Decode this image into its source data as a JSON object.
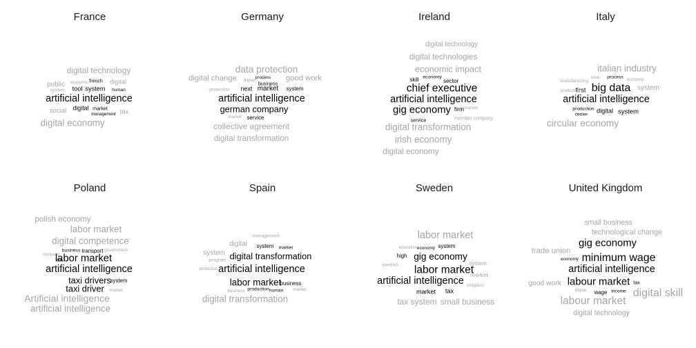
{
  "chart_data": {
    "type": "wordcloud",
    "panels": [
      {
        "title": "France",
        "words": [
          {
            "text": "digital technology",
            "weight": 0.5,
            "tone": "light"
          },
          {
            "text": "public",
            "weight": 0.35,
            "tone": "light"
          },
          {
            "text": "french",
            "weight": 0.15,
            "tone": "dark"
          },
          {
            "text": "digital",
            "weight": 0.3,
            "tone": "light"
          },
          {
            "text": "economic",
            "weight": 0.08,
            "tone": "light"
          },
          {
            "text": "system",
            "weight": 0.12,
            "tone": "light"
          },
          {
            "text": "tool",
            "weight": 0.3,
            "tone": "dark"
          },
          {
            "text": "system",
            "weight": 0.3,
            "tone": "dark"
          },
          {
            "text": "human",
            "weight": 0.1,
            "tone": "dark"
          },
          {
            "text": "artificial intelligence",
            "weight": 0.68,
            "tone": "dark"
          },
          {
            "text": "social",
            "weight": 0.33,
            "tone": "light"
          },
          {
            "text": "digital",
            "weight": 0.28,
            "tone": "dark"
          },
          {
            "text": "market",
            "weight": 0.15,
            "tone": "dark"
          },
          {
            "text": "management",
            "weight": 0.08,
            "tone": "dark"
          },
          {
            "text": "tax",
            "weight": 0.32,
            "tone": "light"
          },
          {
            "text": "digital economy",
            "weight": 0.6,
            "tone": "light"
          }
        ]
      },
      {
        "title": "Germany",
        "words": [
          {
            "text": "data protection",
            "weight": 0.62,
            "tone": "light"
          },
          {
            "text": "digital change",
            "weight": 0.45,
            "tone": "light"
          },
          {
            "text": "digital",
            "weight": 0.08,
            "tone": "light"
          },
          {
            "text": "process",
            "weight": 0.1,
            "tone": "dark"
          },
          {
            "text": "good work",
            "weight": 0.45,
            "tone": "light"
          },
          {
            "text": "business",
            "weight": 0.16,
            "tone": "dark"
          },
          {
            "text": "protection",
            "weight": 0.13,
            "tone": "light"
          },
          {
            "text": "next",
            "weight": 0.28,
            "tone": "dark"
          },
          {
            "text": "market",
            "weight": 0.36,
            "tone": "dark"
          },
          {
            "text": "system",
            "weight": 0.2,
            "tone": "dark"
          },
          {
            "text": "artificial intelligence",
            "weight": 0.68,
            "tone": "dark"
          },
          {
            "text": "german company",
            "weight": 0.56,
            "tone": "dark"
          },
          {
            "text": "market",
            "weight": 0.1,
            "tone": "light"
          },
          {
            "text": "service",
            "weight": 0.2,
            "tone": "dark"
          },
          {
            "text": "collective agreement",
            "weight": 0.5,
            "tone": "light"
          },
          {
            "text": "digital transformation",
            "weight": 0.48,
            "tone": "light"
          }
        ]
      },
      {
        "title": "Ireland",
        "words": [
          {
            "text": "digital technology",
            "weight": 0.35,
            "tone": "light"
          },
          {
            "text": "digital technologies",
            "weight": 0.47,
            "tone": "light"
          },
          {
            "text": "economic impact",
            "weight": 0.56,
            "tone": "light"
          },
          {
            "text": "skill",
            "weight": 0.2,
            "tone": "dark"
          },
          {
            "text": "economy",
            "weight": 0.13,
            "tone": "dark"
          },
          {
            "text": "sector",
            "weight": 0.22,
            "tone": "dark"
          },
          {
            "text": "chief executive",
            "weight": 0.75,
            "tone": "dark"
          },
          {
            "text": "artificial intelligence",
            "weight": 0.68,
            "tone": "dark"
          },
          {
            "text": "gig economy",
            "weight": 0.7,
            "tone": "dark"
          },
          {
            "text": "firm",
            "weight": 0.25,
            "tone": "dark"
          },
          {
            "text": "market",
            "weight": 0.1,
            "tone": "light"
          },
          {
            "text": "service",
            "weight": 0.16,
            "tone": "dark"
          },
          {
            "text": "member company",
            "weight": 0.14,
            "tone": "light"
          },
          {
            "text": "digital transformation",
            "weight": 0.6,
            "tone": "light"
          },
          {
            "text": "irish economy",
            "weight": 0.6,
            "tone": "light"
          },
          {
            "text": "digital economy",
            "weight": 0.48,
            "tone": "light"
          }
        ]
      },
      {
        "title": "Italy",
        "words": [
          {
            "text": "italian industry",
            "weight": 0.6,
            "tone": "light"
          },
          {
            "text": "total",
            "weight": 0.1,
            "tone": "light"
          },
          {
            "text": "process",
            "weight": 0.12,
            "tone": "dark"
          },
          {
            "text": "economy",
            "weight": 0.08,
            "tone": "light"
          },
          {
            "text": "manufacturing",
            "weight": 0.1,
            "tone": "light"
          },
          {
            "text": "system",
            "weight": 0.36,
            "tone": "light"
          },
          {
            "text": "first",
            "weight": 0.3,
            "tone": "dark"
          },
          {
            "text": "big data",
            "weight": 0.78,
            "tone": "dark"
          },
          {
            "text": "production",
            "weight": 0.07,
            "tone": "light"
          },
          {
            "text": "artificial intelligence",
            "weight": 0.68,
            "tone": "dark"
          },
          {
            "text": "production",
            "weight": 0.12,
            "tone": "dark"
          },
          {
            "text": "digital",
            "weight": 0.3,
            "tone": "dark"
          },
          {
            "text": "system",
            "weight": 0.32,
            "tone": "dark"
          },
          {
            "text": "center",
            "weight": 0.12,
            "tone": "dark"
          },
          {
            "text": "circular economy",
            "weight": 0.63,
            "tone": "light"
          }
        ]
      },
      {
        "title": "Poland",
        "words": [
          {
            "text": "polish economy",
            "weight": 0.48,
            "tone": "light"
          },
          {
            "text": "labor market",
            "weight": 0.6,
            "tone": "light"
          },
          {
            "text": "digital competence",
            "weight": 0.6,
            "tone": "light"
          },
          {
            "text": "business",
            "weight": 0.12,
            "tone": "dark"
          },
          {
            "text": "transport",
            "weight": 0.2,
            "tone": "dark"
          },
          {
            "text": "government",
            "weight": 0.1,
            "tone": "light"
          },
          {
            "text": "company",
            "weight": 0.08,
            "tone": "light"
          },
          {
            "text": "tax",
            "weight": 0.14,
            "tone": "dark"
          },
          {
            "text": "labor market",
            "weight": 0.7,
            "tone": "dark"
          },
          {
            "text": "artificial intelligence",
            "weight": 0.68,
            "tone": "dark"
          },
          {
            "text": "taxi drivers",
            "weight": 0.56,
            "tone": "dark"
          },
          {
            "text": "system",
            "weight": 0.2,
            "tone": "dark"
          },
          {
            "text": "taxi driver",
            "weight": 0.56,
            "tone": "dark"
          },
          {
            "text": "market",
            "weight": 0.1,
            "tone": "light"
          },
          {
            "text": "Artificial intelligence",
            "weight": 0.65,
            "tone": "light"
          },
          {
            "text": "artificial intelligence",
            "weight": 0.6,
            "tone": "light"
          }
        ]
      },
      {
        "title": "Spain",
        "words": [
          {
            "text": "management",
            "weight": 0.12,
            "tone": "light"
          },
          {
            "text": "digital",
            "weight": 0.35,
            "tone": "light"
          },
          {
            "text": "system",
            "weight": 0.2,
            "tone": "dark"
          },
          {
            "text": "market",
            "weight": 0.12,
            "tone": "dark"
          },
          {
            "text": "system",
            "weight": 0.36,
            "tone": "light"
          },
          {
            "text": "digital transformation",
            "weight": 0.56,
            "tone": "dark"
          },
          {
            "text": "program",
            "weight": 0.12,
            "tone": "light"
          },
          {
            "text": "artificial intelligence",
            "weight": 0.68,
            "tone": "dark"
          },
          {
            "text": "protection",
            "weight": 0.07,
            "tone": "light"
          },
          {
            "text": "labor market",
            "weight": 0.6,
            "tone": "dark"
          },
          {
            "text": "business",
            "weight": 0.2,
            "tone": "dark"
          },
          {
            "text": "business",
            "weight": 0.1,
            "tone": "light"
          },
          {
            "text": "production",
            "weight": 0.12,
            "tone": "dark"
          },
          {
            "text": "human",
            "weight": 0.12,
            "tone": "dark"
          },
          {
            "text": "market",
            "weight": 0.1,
            "tone": "light"
          },
          {
            "text": "digital transformation",
            "weight": 0.6,
            "tone": "light"
          }
        ]
      },
      {
        "title": "Sweden",
        "words": [
          {
            "text": "labor market",
            "weight": 0.68,
            "tone": "light"
          },
          {
            "text": "education",
            "weight": 0.08,
            "tone": "light"
          },
          {
            "text": "economy",
            "weight": 0.1,
            "tone": "dark"
          },
          {
            "text": "system",
            "weight": 0.2,
            "tone": "dark"
          },
          {
            "text": "high",
            "weight": 0.2,
            "tone": "dark"
          },
          {
            "text": "gig economy",
            "weight": 0.62,
            "tone": "dark"
          },
          {
            "text": "swedish",
            "weight": 0.12,
            "tone": "light"
          },
          {
            "text": "system",
            "weight": 0.22,
            "tone": "light"
          },
          {
            "text": "labor market",
            "weight": 0.75,
            "tone": "dark"
          },
          {
            "text": "market",
            "weight": 0.25,
            "tone": "light"
          },
          {
            "text": "artificial intelligence",
            "weight": 0.68,
            "tone": "dark"
          },
          {
            "text": "program",
            "weight": 0.1,
            "tone": "light"
          },
          {
            "text": "market",
            "weight": 0.3,
            "tone": "dark"
          },
          {
            "text": "tax",
            "weight": 0.3,
            "tone": "dark"
          },
          {
            "text": "tax system",
            "weight": 0.5,
            "tone": "light"
          },
          {
            "text": "small business",
            "weight": 0.5,
            "tone": "light"
          }
        ]
      },
      {
        "title": "United Kingdom",
        "words": [
          {
            "text": "small business",
            "weight": 0.4,
            "tone": "light"
          },
          {
            "text": "technological change",
            "weight": 0.42,
            "tone": "light"
          },
          {
            "text": "trade union",
            "weight": 0.45,
            "tone": "light"
          },
          {
            "text": "gig economy",
            "weight": 0.7,
            "tone": "dark"
          },
          {
            "text": "economy",
            "weight": 0.1,
            "tone": "dark"
          },
          {
            "text": "minimum wage",
            "weight": 0.78,
            "tone": "dark"
          },
          {
            "text": "artificial intelligence",
            "weight": 0.68,
            "tone": "dark"
          },
          {
            "text": "good work",
            "weight": 0.38,
            "tone": "light"
          },
          {
            "text": "labour market",
            "weight": 0.7,
            "tone": "dark"
          },
          {
            "text": "tax",
            "weight": 0.15,
            "tone": "dark"
          },
          {
            "text": "digital",
            "weight": 0.08,
            "tone": "light"
          },
          {
            "text": "wage",
            "weight": 0.2,
            "tone": "dark"
          },
          {
            "text": "income",
            "weight": 0.12,
            "tone": "dark"
          },
          {
            "text": "digital skill",
            "weight": 0.78,
            "tone": "light"
          },
          {
            "text": "labour market",
            "weight": 0.75,
            "tone": "light"
          },
          {
            "text": "digital technology",
            "weight": 0.4,
            "tone": "light"
          }
        ]
      }
    ]
  },
  "colors": {
    "dark": "#000000",
    "light": "#a6a6a6",
    "title": "#1a1a1a"
  }
}
